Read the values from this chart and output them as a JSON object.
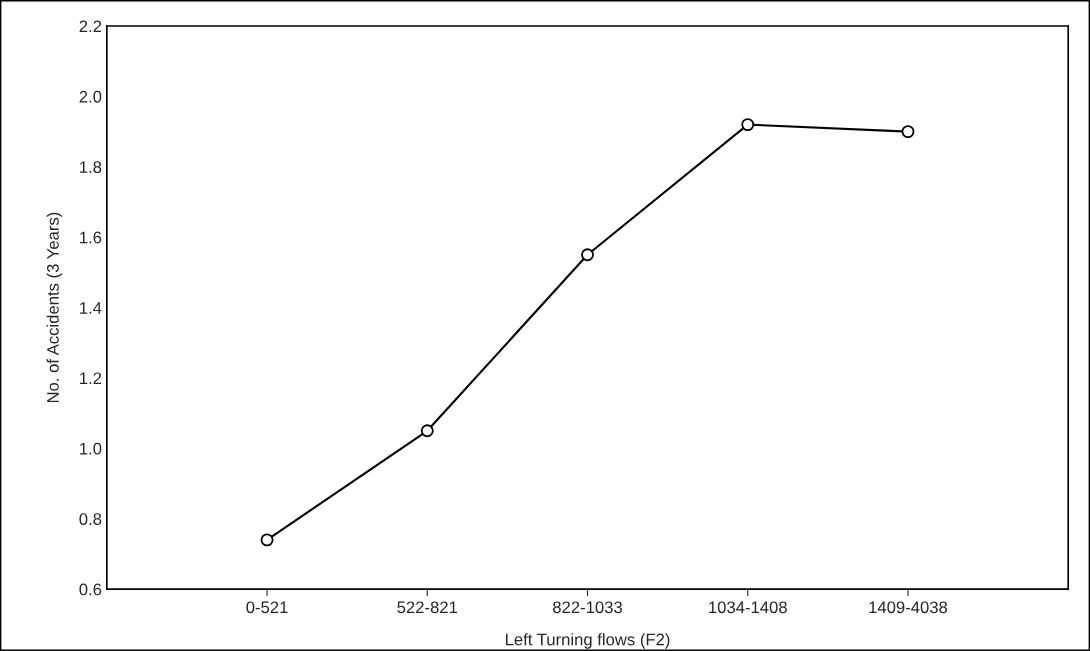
{
  "chart_data": {
    "type": "line",
    "xlabel": "Left Turning flows (F2)",
    "ylabel": "No. of Accidents (3 Years)",
    "categories": [
      "0-521",
      "522-821",
      "822-1033",
      "1034-1408",
      "1409-4038"
    ],
    "series": [
      {
        "color": "#000000",
        "values": [
          0.74,
          1.05,
          1.55,
          1.92,
          1.9
        ]
      }
    ],
    "ylim": [
      0.6,
      2.2
    ],
    "yticks": [
      0.6,
      0.8,
      {
        "value": 1,
        "label": "1.0"
      },
      1.2,
      1.4,
      1.6,
      1.8,
      {
        "value": 2,
        "label": "2.0"
      },
      2.2
    ],
    "grid": false,
    "legend": false,
    "marker": "circle",
    "line_style": "solid"
  }
}
